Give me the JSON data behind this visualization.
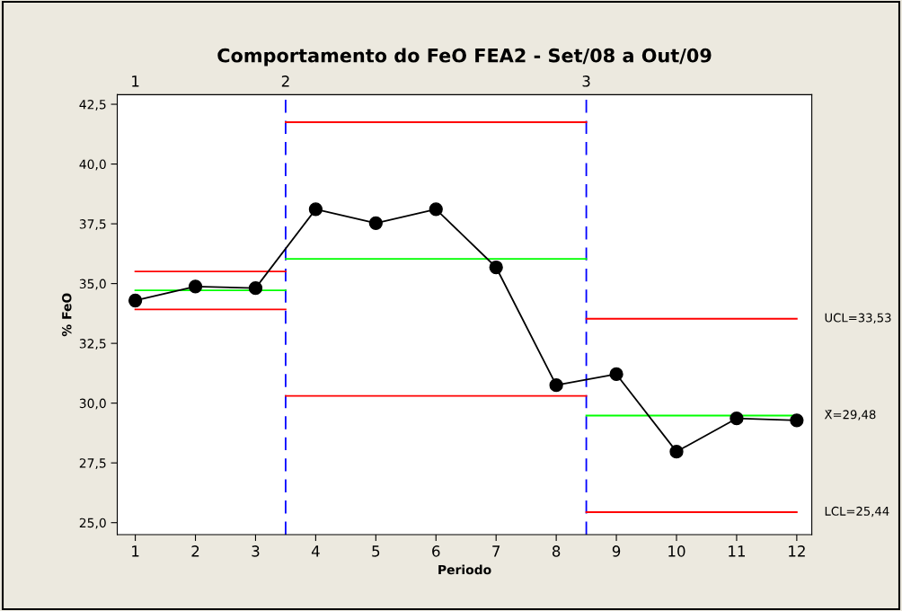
{
  "chart_data": {
    "type": "line",
    "title": "Comportamento do FeO FEA2 - Set/08 a Out/09",
    "xlabel": "Periodo",
    "ylabel": "% FeO",
    "x": [
      1,
      2,
      3,
      4,
      5,
      6,
      7,
      8,
      9,
      10,
      11,
      12
    ],
    "series": [
      {
        "color": "#000000",
        "marker": "circle",
        "values": [
          34.29,
          34.88,
          34.81,
          38.11,
          37.53,
          38.11,
          35.68,
          30.75,
          31.21,
          27.97,
          29.36,
          29.28
        ]
      },
      {
        "type": "line",
        "color": "#ff0000",
        "marker": "none",
        "x": [
          1,
          3.5
        ],
        "values": [
          35.51,
          35.51
        ]
      },
      {
        "type": "line",
        "color": "#00ff00",
        "marker": "none",
        "x": [
          1,
          3.5
        ],
        "values": [
          34.72,
          34.72
        ]
      },
      {
        "type": "line",
        "color": "#ff0000",
        "marker": "none",
        "x": [
          1,
          3.5
        ],
        "values": [
          33.92,
          33.92
        ]
      },
      {
        "type": "line",
        "color": "#ff0000",
        "marker": "none",
        "x": [
          3.5,
          8.5
        ],
        "values": [
          41.75,
          41.75
        ]
      },
      {
        "type": "line",
        "color": "#00ff00",
        "marker": "none",
        "x": [
          3.5,
          8.5
        ],
        "values": [
          36.03,
          36.03
        ]
      },
      {
        "type": "line",
        "color": "#ff0000",
        "marker": "none",
        "x": [
          3.5,
          8.5
        ],
        "values": [
          30.3,
          30.3
        ]
      },
      {
        "type": "line",
        "color": "#ff0000",
        "marker": "none",
        "x": [
          8.5,
          12
        ],
        "values": [
          33.53,
          33.53
        ]
      },
      {
        "type": "line",
        "color": "#00ff00",
        "marker": "none",
        "x": [
          8.5,
          12
        ],
        "values": [
          29.48,
          29.48
        ]
      },
      {
        "type": "line",
        "color": "#ff0000",
        "marker": "none",
        "x": [
          8.5,
          12
        ],
        "values": [
          25.44,
          25.44
        ]
      }
    ],
    "ref_lines": [
      {
        "axis": "x",
        "value": 3.5,
        "color": "#0000ff",
        "line_style": "dashed"
      },
      {
        "axis": "x",
        "value": 8.5,
        "color": "#0000ff",
        "line_style": "dashed"
      }
    ],
    "annotations": [
      {
        "text": "UCL=33,53",
        "x": 12,
        "y": 33.53
      },
      {
        "text": "X̄=29,48",
        "x": 12,
        "y": 29.48
      },
      {
        "text": "LCL=25,44",
        "x": 12,
        "y": 25.44
      },
      "1",
      {
        "text": "2",
        "x": 3.5,
        "y": 42.9
      },
      {
        "text": "3",
        "x": 8.5,
        "y": 42.9
      }
    ],
    "xlim": [
      0.7,
      12.25
    ],
    "xticks": [
      1,
      2,
      3,
      4,
      5,
      6,
      7,
      8,
      9,
      10,
      11,
      12
    ],
    "ylim": [
      24.5,
      42.9
    ],
    "yticks": [
      {
        "value": 25,
        "label": "25,0"
      },
      {
        "value": 27.5,
        "label": "27,5"
      },
      {
        "value": 30,
        "label": "30,0"
      },
      {
        "value": 32.5,
        "label": "32,5"
      },
      {
        "value": 35,
        "label": "35,0"
      },
      {
        "value": 37.5,
        "label": "37,5"
      },
      {
        "value": 40,
        "label": "40,0"
      },
      {
        "value": 42.5,
        "label": "42,5"
      }
    ],
    "grid": false,
    "legend": false,
    "line_style": "solid"
  }
}
